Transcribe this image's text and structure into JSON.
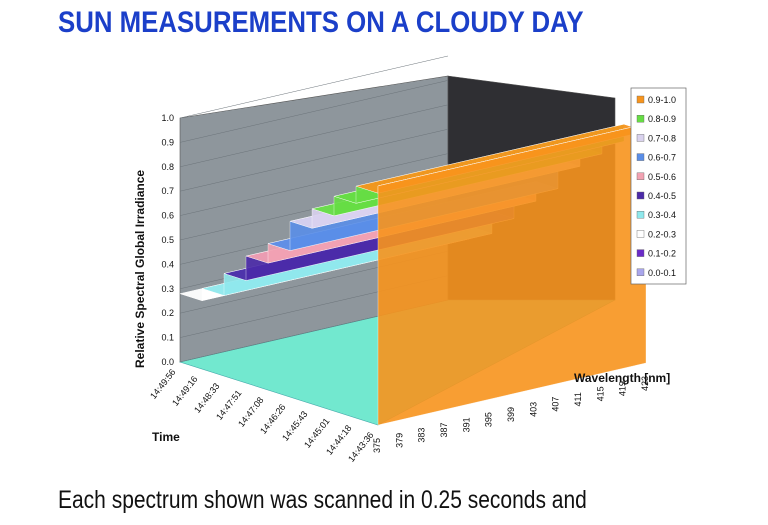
{
  "page": {
    "title": "SUN MEASUREMENTS ON A CLOUDY DAY",
    "caption": "Each spectrum shown was scanned in 0.25 seconds and",
    "title_color": "#1b3fc9"
  },
  "chart_data": {
    "type": "surface",
    "title": "",
    "ylabel": "Relative Spectral Global Irradiance",
    "xlabel": "Wavelength [nm]",
    "zlabel": "Time",
    "ylim": [
      0.0,
      1.0
    ],
    "y_ticks": [
      "0.0",
      "0.1",
      "0.2",
      "0.3",
      "0.4",
      "0.5",
      "0.6",
      "0.7",
      "0.8",
      "0.9",
      "1.0"
    ],
    "wavelengths": [
      "375",
      "379",
      "383",
      "387",
      "391",
      "395",
      "399",
      "403",
      "407",
      "411",
      "415",
      "419",
      "423"
    ],
    "times": [
      "14:49:56",
      "14:49:16",
      "14:48:33",
      "14:47:51",
      "14:47:08",
      "14:46:26",
      "14:45:43",
      "14:45:01",
      "14:44:18",
      "14:43:36"
    ],
    "legend_position": "right",
    "legend": [
      {
        "label": "0.9-1.0",
        "color": "#f7941d"
      },
      {
        "label": "0.8-0.9",
        "color": "#66dd44"
      },
      {
        "label": "0.7-0.8",
        "color": "#d9d2ee"
      },
      {
        "label": "0.6-0.7",
        "color": "#5a8ee8"
      },
      {
        "label": "0.5-0.6",
        "color": "#f2a2b2"
      },
      {
        "label": "0.4-0.5",
        "color": "#4b2aa8"
      },
      {
        "label": "0.3-0.4",
        "color": "#8fe8ec"
      },
      {
        "label": "0.2-0.3",
        "color": "#ffffff"
      },
      {
        "label": "0.1-0.2",
        "color": "#6a2bc8"
      },
      {
        "label": "0.0-0.1",
        "color": "#a9a6ec"
      }
    ],
    "profile": [
      {
        "time": "14:49:56",
        "value": 0.28
      },
      {
        "time": "14:49:16",
        "value": 0.33
      },
      {
        "time": "14:48:33",
        "value": 0.42
      },
      {
        "time": "14:47:51",
        "value": 0.52
      },
      {
        "time": "14:47:08",
        "value": 0.6
      },
      {
        "time": "14:46:26",
        "value": 0.72
      },
      {
        "time": "14:45:43",
        "value": 0.8
      },
      {
        "time": "14:45:01",
        "value": 0.88
      },
      {
        "time": "14:44:18",
        "value": 0.95
      },
      {
        "time": "14:43:36",
        "value": 0.98
      }
    ]
  }
}
